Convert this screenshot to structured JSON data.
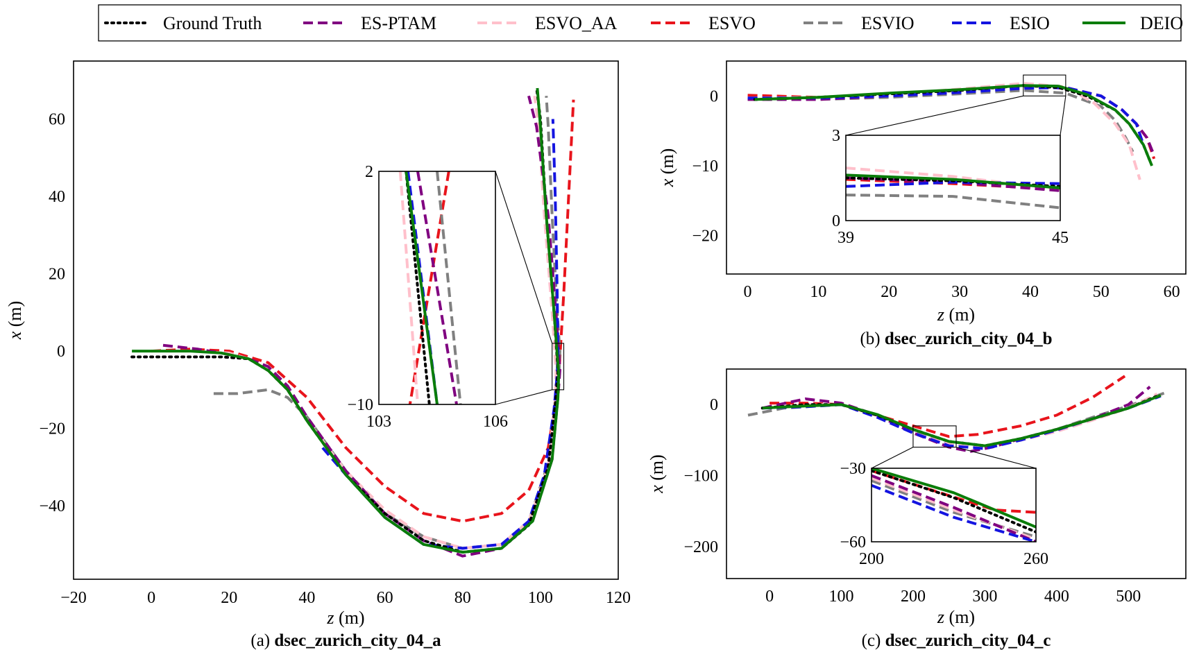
{
  "legend": {
    "entries": [
      {
        "label": "Ground Truth",
        "color": "#000000",
        "dash": "dotted"
      },
      {
        "label": "ES-PTAM",
        "color": "#800080",
        "dash": "dashed"
      },
      {
        "label": "ESVO_AA",
        "color": "#ffc0cb",
        "dash": "dashed"
      },
      {
        "label": "ESVO",
        "color": "#e8141c",
        "dash": "dashed"
      },
      {
        "label": "ESVIO",
        "color": "#808080",
        "dash": "dashed"
      },
      {
        "label": "ESIO",
        "color": "#1414e0",
        "dash": "dashed"
      },
      {
        "label": "DEIO",
        "color": "#0a7d0a",
        "dash": "solid"
      }
    ]
  },
  "chart_data": [
    {
      "type": "line",
      "caption_prefix": "(a) ",
      "caption_bold": "dsec_zurich_city_04_a",
      "xlabel": "z (m)",
      "ylabel": "x (m)",
      "xlim": [
        -20,
        120
      ],
      "ylim": [
        -59,
        75
      ],
      "xticks": [
        -20,
        0,
        20,
        40,
        60,
        80,
        100,
        120
      ],
      "yticks": [
        -40,
        -20,
        0,
        20,
        40,
        60
      ],
      "series": [
        {
          "name": "Ground Truth",
          "x": [
            -5,
            10,
            18,
            25,
            30,
            35,
            40,
            50,
            60,
            70,
            80,
            90,
            97,
            102,
            104,
            104.5,
            103.5,
            101.5,
            100,
            99
          ],
          "y": [
            -1.5,
            -1.5,
            -1.5,
            -2,
            -5,
            -10,
            -18,
            -32,
            -42,
            -49,
            -52,
            -51,
            -45,
            -30,
            -12,
            -5,
            10,
            35,
            60,
            68
          ]
        },
        {
          "name": "ES-PTAM",
          "x": [
            3,
            12,
            18,
            25,
            30,
            35,
            40,
            50,
            60,
            70,
            80,
            90,
            98,
            103,
            104.5,
            105,
            104,
            102,
            99,
            97
          ],
          "y": [
            1.5,
            0.5,
            -0.5,
            -2,
            -4,
            -9,
            -17,
            -31,
            -42,
            -49,
            -53,
            -51,
            -44,
            -28,
            -12,
            -5,
            10,
            35,
            58,
            66
          ]
        },
        {
          "name": "ESVO_AA",
          "x": [
            0,
            10,
            20,
            25,
            30,
            35,
            40,
            50,
            60,
            70,
            80,
            90,
            97,
            102,
            103.8,
            104,
            103,
            101,
            99.5,
            98.5
          ],
          "y": [
            0,
            0,
            -0.5,
            -2,
            -5,
            -10,
            -18,
            -31,
            -41,
            -48,
            -51,
            -50,
            -44,
            -30,
            -12,
            -5,
            10,
            35,
            58,
            66
          ]
        },
        {
          "name": "ESVO",
          "x": [
            0,
            10,
            20,
            30,
            40,
            50,
            60,
            70,
            80,
            90,
            97,
            102,
            104,
            104.5,
            104.8,
            106,
            107.5,
            108.5
          ],
          "y": [
            0,
            0.5,
            0,
            -3,
            -12,
            -25,
            -35,
            -42,
            -44,
            -42,
            -36,
            -25,
            -13,
            -9,
            -5,
            15,
            45,
            65
          ]
        },
        {
          "name": "ESVIO",
          "x": [
            16,
            22,
            30,
            35,
            40,
            50,
            60,
            70,
            80,
            90,
            97,
            102,
            104,
            104.8,
            105,
            104.3,
            103,
            102,
            101.5
          ],
          "y": [
            -11,
            -11,
            -10,
            -12,
            -17,
            -31,
            -42,
            -48,
            -51,
            -50,
            -44,
            -29,
            -12,
            -5,
            0,
            10,
            35,
            58,
            66
          ]
        },
        {
          "name": "ESIO",
          "x": [
            44,
            50,
            60,
            70,
            80,
            90,
            97,
            101,
            103.5,
            104.3,
            104.5,
            104.3,
            103.8,
            103.2
          ],
          "y": [
            -25,
            -32,
            -43,
            -50,
            -51,
            -50,
            -44,
            -32,
            -15,
            -6,
            0,
            15,
            40,
            60
          ]
        },
        {
          "name": "DEIO",
          "x": [
            -5,
            0,
            10,
            18,
            25,
            30,
            35,
            40,
            50,
            60,
            70,
            80,
            90,
            98,
            103,
            104.5,
            104.7,
            103.5,
            101.5,
            100,
            99.2
          ],
          "y": [
            0,
            0,
            0,
            -0.5,
            -2,
            -5,
            -10,
            -18,
            -32,
            -43,
            -50,
            -52,
            -51,
            -44,
            -28,
            -12,
            -6,
            10,
            35,
            58,
            68
          ]
        }
      ],
      "inset": {
        "xlim": [
          103,
          106
        ],
        "ylim": [
          -10,
          2
        ],
        "xticks": [
          103,
          106
        ],
        "yticks": [
          -10,
          2
        ],
        "series": [
          {
            "name": "Ground Truth",
            "x": [
              103.7,
              104.3
            ],
            "y": [
              2,
              -10
            ]
          },
          {
            "name": "ES-PTAM",
            "x": [
              104.0,
              105.0
            ],
            "y": [
              2,
              -10
            ]
          },
          {
            "name": "ESVO_AA",
            "x": [
              103.55,
              104.0
            ],
            "y": [
              2,
              -10
            ]
          },
          {
            "name": "ESVO",
            "x": [
              104.8,
              103.8
            ],
            "y": [
              2,
              -10
            ]
          },
          {
            "name": "ESVIO",
            "x": [
              104.5,
              105.1
            ],
            "y": [
              2,
              -10
            ]
          },
          {
            "name": "ESIO",
            "x": [
              103.75,
              104.5
            ],
            "y": [
              2,
              -10
            ]
          },
          {
            "name": "DEIO",
            "x": [
              103.7,
              104.5
            ],
            "y": [
              2,
              -10
            ]
          }
        ]
      }
    },
    {
      "type": "line",
      "caption_prefix": "(b) ",
      "caption_bold": "dsec_zurich_city_04_b",
      "xlabel": "z (m)",
      "ylabel": "x (m)",
      "xlim": [
        -3,
        62
      ],
      "ylim": [
        -25.5,
        5
      ],
      "xticks": [
        0,
        10,
        20,
        30,
        40,
        50,
        60
      ],
      "yticks": [
        -20,
        -10,
        0
      ],
      "series": [
        {
          "name": "Ground Truth",
          "x": [
            1,
            10,
            20,
            30,
            39,
            44,
            48,
            52,
            54,
            56,
            57
          ],
          "y": [
            -0.5,
            -0.2,
            0.3,
            0.8,
            1.5,
            1.2,
            0,
            -2,
            -4,
            -7,
            -9.5
          ]
        },
        {
          "name": "ES-PTAM",
          "x": [
            0,
            10,
            20,
            30,
            39,
            45,
            50,
            53,
            55,
            56.5,
            57.5
          ],
          "y": [
            -0.5,
            -0.5,
            0,
            0.5,
            1.4,
            1.1,
            0,
            -2,
            -4,
            -6,
            -8.5
          ]
        },
        {
          "name": "ESVO_AA",
          "x": [
            0,
            10,
            20,
            30,
            39,
            45,
            49,
            52,
            54,
            55.5
          ],
          "y": [
            -0.3,
            -0.2,
            0.2,
            1,
            1.8,
            1.3,
            -1,
            -4,
            -7,
            -12
          ]
        },
        {
          "name": "ESVO",
          "x": [
            0,
            10,
            20,
            30,
            39,
            45,
            50,
            53,
            55,
            56.5,
            57.5
          ],
          "y": [
            0.1,
            -0.2,
            0.2,
            0.8,
            1.3,
            1.2,
            0,
            -2,
            -4,
            -6,
            -9
          ]
        },
        {
          "name": "ESVIO",
          "x": [
            0,
            10,
            20,
            30,
            39,
            45,
            50,
            52,
            53.5,
            54.5
          ],
          "y": [
            -0.5,
            -0.5,
            -0.2,
            0.3,
            0.8,
            0.4,
            -1.5,
            -3.5,
            -6,
            -8
          ]
        },
        {
          "name": "ESIO",
          "x": [
            0,
            10,
            20,
            30,
            39,
            45,
            50,
            53,
            55,
            56
          ],
          "y": [
            -0.3,
            -0.3,
            0,
            0.5,
            1.1,
            1.2,
            0,
            -2,
            -4,
            -7
          ]
        },
        {
          "name": "DEIO",
          "x": [
            1,
            10,
            20,
            30,
            39,
            44,
            48,
            52,
            54,
            56,
            57.2
          ],
          "y": [
            -0.5,
            -0.2,
            0.4,
            0.9,
            1.5,
            1.4,
            0.2,
            -2,
            -4,
            -7,
            -10
          ]
        }
      ],
      "inset": {
        "xlim": [
          39,
          45
        ],
        "ylim": [
          0,
          3
        ],
        "xticks": [
          39,
          45
        ],
        "yticks": [
          0,
          3
        ],
        "series": [
          {
            "name": "Ground Truth",
            "x": [
              39,
              42,
              45
            ],
            "y": [
              1.5,
              1.4,
              1.2
            ]
          },
          {
            "name": "ES-PTAM",
            "x": [
              39,
              42,
              45
            ],
            "y": [
              1.5,
              1.35,
              1.05
            ]
          },
          {
            "name": "ESVO_AA",
            "x": [
              39,
              42,
              45
            ],
            "y": [
              1.85,
              1.55,
              1.1
            ]
          },
          {
            "name": "ESVO",
            "x": [
              39,
              42,
              45
            ],
            "y": [
              1.45,
              1.3,
              1.1
            ]
          },
          {
            "name": "ESVIO",
            "x": [
              39,
              42,
              45
            ],
            "y": [
              0.9,
              0.85,
              0.45
            ]
          },
          {
            "name": "ESIO",
            "x": [
              39,
              42,
              45
            ],
            "y": [
              1.2,
              1.35,
              1.3
            ]
          },
          {
            "name": "DEIO",
            "x": [
              39,
              42,
              45
            ],
            "y": [
              1.6,
              1.45,
              1.15
            ]
          }
        ]
      }
    },
    {
      "type": "line",
      "caption_prefix": "(c) ",
      "caption_bold": "dsec_zurich_city_04_c",
      "xlabel": "z (m)",
      "ylabel": "x (m)",
      "xlim": [
        -60,
        580
      ],
      "ylim": [
        -245,
        50
      ],
      "xticks": [
        0,
        100,
        200,
        300,
        400,
        500
      ],
      "yticks": [
        -200,
        -100,
        0
      ],
      "series": [
        {
          "name": "Ground Truth",
          "x": [
            -10,
            50,
            100,
            150,
            200,
            250,
            300,
            350,
            400,
            450,
            500,
            540
          ],
          "y": [
            -5,
            0,
            0,
            -15,
            -35,
            -52,
            -58,
            -48,
            -35,
            -20,
            -5,
            12
          ]
        },
        {
          "name": "ES-PTAM",
          "x": [
            -10,
            50,
            100,
            150,
            200,
            250,
            280,
            310,
            350,
            400,
            450,
            500,
            530
          ],
          "y": [
            -5,
            8,
            2,
            -15,
            -40,
            -60,
            -66,
            -60,
            -48,
            -35,
            -20,
            0,
            25
          ]
        },
        {
          "name": "ESVO_AA",
          "x": [
            -10,
            50,
            100,
            150,
            200,
            250,
            300,
            350,
            400,
            450,
            500,
            540
          ],
          "y": [
            -5,
            0,
            0,
            -15,
            -40,
            -56,
            -60,
            -50,
            -38,
            -22,
            -5,
            15
          ]
        },
        {
          "name": "ESVO",
          "x": [
            0,
            50,
            100,
            150,
            200,
            250,
            290,
            350,
            400,
            450,
            495
          ],
          "y": [
            2,
            2,
            0,
            -15,
            -30,
            -45,
            -42,
            -30,
            -15,
            10,
            40
          ]
        },
        {
          "name": "ESVIO",
          "x": [
            -30,
            20,
            100,
            150,
            200,
            250,
            300,
            350,
            400,
            450,
            500,
            555
          ],
          "y": [
            -15,
            -5,
            0,
            -15,
            -38,
            -55,
            -60,
            -50,
            -35,
            -18,
            -2,
            18
          ]
        },
        {
          "name": "ESIO",
          "x": [
            -10,
            50,
            100,
            150,
            200,
            250,
            300,
            350,
            400,
            450,
            500,
            545
          ],
          "y": [
            -5,
            -3,
            0,
            -18,
            -40,
            -58,
            -62,
            -50,
            -36,
            -20,
            -5,
            12
          ]
        },
        {
          "name": "DEIO",
          "x": [
            -10,
            50,
            100,
            150,
            200,
            250,
            300,
            350,
            400,
            450,
            500,
            545
          ],
          "y": [
            -5,
            -2,
            0,
            -14,
            -35,
            -52,
            -58,
            -48,
            -35,
            -20,
            -5,
            13
          ]
        }
      ],
      "inset": {
        "xlim": [
          200,
          260
        ],
        "ylim": [
          -60,
          -30
        ],
        "xticks": [
          200,
          260
        ],
        "yticks": [
          -60,
          -30
        ],
        "series": [
          {
            "name": "Ground Truth",
            "x": [
              200,
              230,
              260
            ],
            "y": [
              -31,
              -42,
              -56
            ]
          },
          {
            "name": "ES-PTAM",
            "x": [
              200,
              230,
              260
            ],
            "y": [
              -33,
              -46,
              -60
            ]
          },
          {
            "name": "ESVO_AA",
            "x": [
              200,
              230,
              260
            ],
            "y": [
              -34,
              -47,
              -59
            ]
          },
          {
            "name": "ESVO",
            "x": [
              200,
              225,
              245,
              260
            ],
            "y": [
              -31,
              -40,
              -47,
              -48
            ]
          },
          {
            "name": "ESVIO",
            "x": [
              200,
              230,
              260
            ],
            "y": [
              -35,
              -48,
              -58
            ]
          },
          {
            "name": "ESIO",
            "x": [
              200,
              230,
              260
            ],
            "y": [
              -37,
              -50,
              -60
            ]
          },
          {
            "name": "DEIO",
            "x": [
              200,
              230,
              260
            ],
            "y": [
              -30,
              -40,
              -54
            ]
          }
        ]
      }
    }
  ]
}
